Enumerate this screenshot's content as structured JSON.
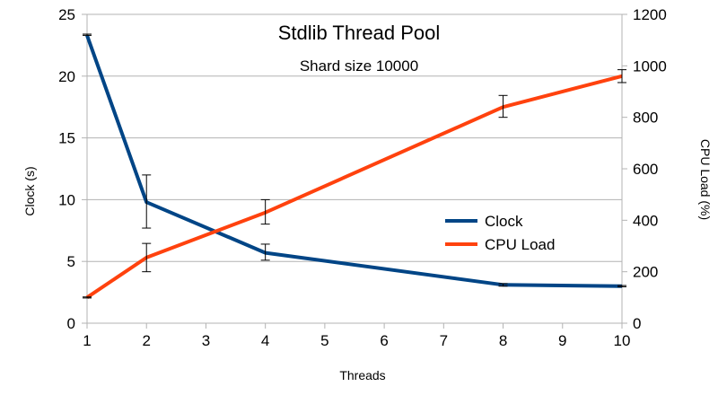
{
  "chart_data": {
    "type": "line",
    "title": "Stdlib Thread Pool",
    "subtitle": "Shard size 10000",
    "xlabel": "Threads",
    "ylabel_left": "Clock (s)",
    "ylabel_right": "CPU Load (%)",
    "x": [
      1,
      2,
      4,
      8,
      10
    ],
    "xlim": [
      1,
      10
    ],
    "x_ticks": [
      1,
      2,
      3,
      4,
      5,
      6,
      7,
      8,
      9,
      10
    ],
    "ylim_left": [
      0,
      25
    ],
    "y_ticks_left": [
      0,
      5,
      10,
      15,
      20,
      25
    ],
    "ylim_right": [
      0,
      1200
    ],
    "y_ticks_right": [
      0,
      200,
      400,
      600,
      800,
      1000,
      1200
    ],
    "grid": "horizontal",
    "legend_position": "right",
    "series": [
      {
        "name": "Clock",
        "axis": "left",
        "color": "#004586",
        "values": [
          23.3,
          9.8,
          5.7,
          3.1,
          3.0
        ],
        "error_low": [
          23.3,
          7.7,
          5.1,
          3.0,
          2.95
        ],
        "error_high": [
          23.4,
          12.0,
          6.4,
          3.2,
          3.05
        ]
      },
      {
        "name": "CPU Load",
        "axis": "right",
        "color": "#ff420e",
        "values": [
          100,
          255,
          430,
          840,
          960
        ],
        "error_low": [
          98,
          200,
          385,
          800,
          935
        ],
        "error_high": [
          102,
          310,
          480,
          885,
          985
        ]
      }
    ]
  }
}
